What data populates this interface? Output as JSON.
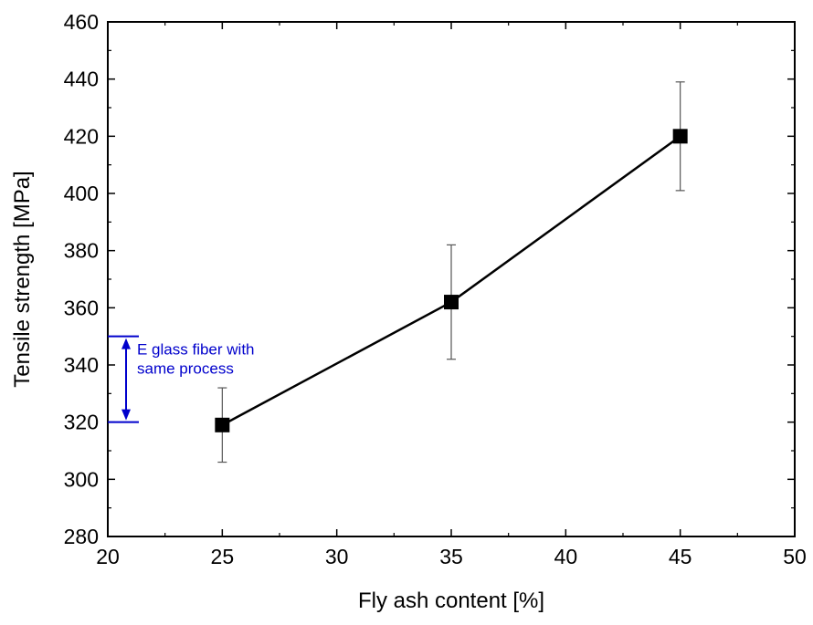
{
  "chart_data": {
    "type": "scatter",
    "title": "",
    "xlabel": "Fly ash content [%]",
    "ylabel": "Tensile strength [MPa]",
    "xlim": [
      20,
      50
    ],
    "ylim": [
      280,
      460
    ],
    "x_ticks": [
      20,
      25,
      30,
      35,
      40,
      45,
      50
    ],
    "y_ticks": [
      280,
      300,
      320,
      340,
      360,
      380,
      400,
      420,
      440,
      460
    ],
    "x_tick_labels": [
      "20",
      "25",
      "30",
      "35",
      "40",
      "45",
      "50"
    ],
    "y_tick_labels": [
      "280",
      "300",
      "320",
      "340",
      "360",
      "380",
      "400",
      "420",
      "440",
      "460"
    ],
    "grid": false,
    "legend": "none",
    "series": [
      {
        "x": [
          25,
          35,
          45
        ],
        "y": [
          319,
          362,
          420
        ],
        "error_low": [
          306,
          342,
          401
        ],
        "error_high": [
          332,
          382,
          439
        ],
        "marker": "square",
        "line": true,
        "color": "#000000"
      }
    ],
    "annotations": [
      {
        "text_lines": [
          "E glass fiber with",
          "same process"
        ],
        "range": [
          320,
          350
        ],
        "color": "#0000cc"
      }
    ]
  }
}
